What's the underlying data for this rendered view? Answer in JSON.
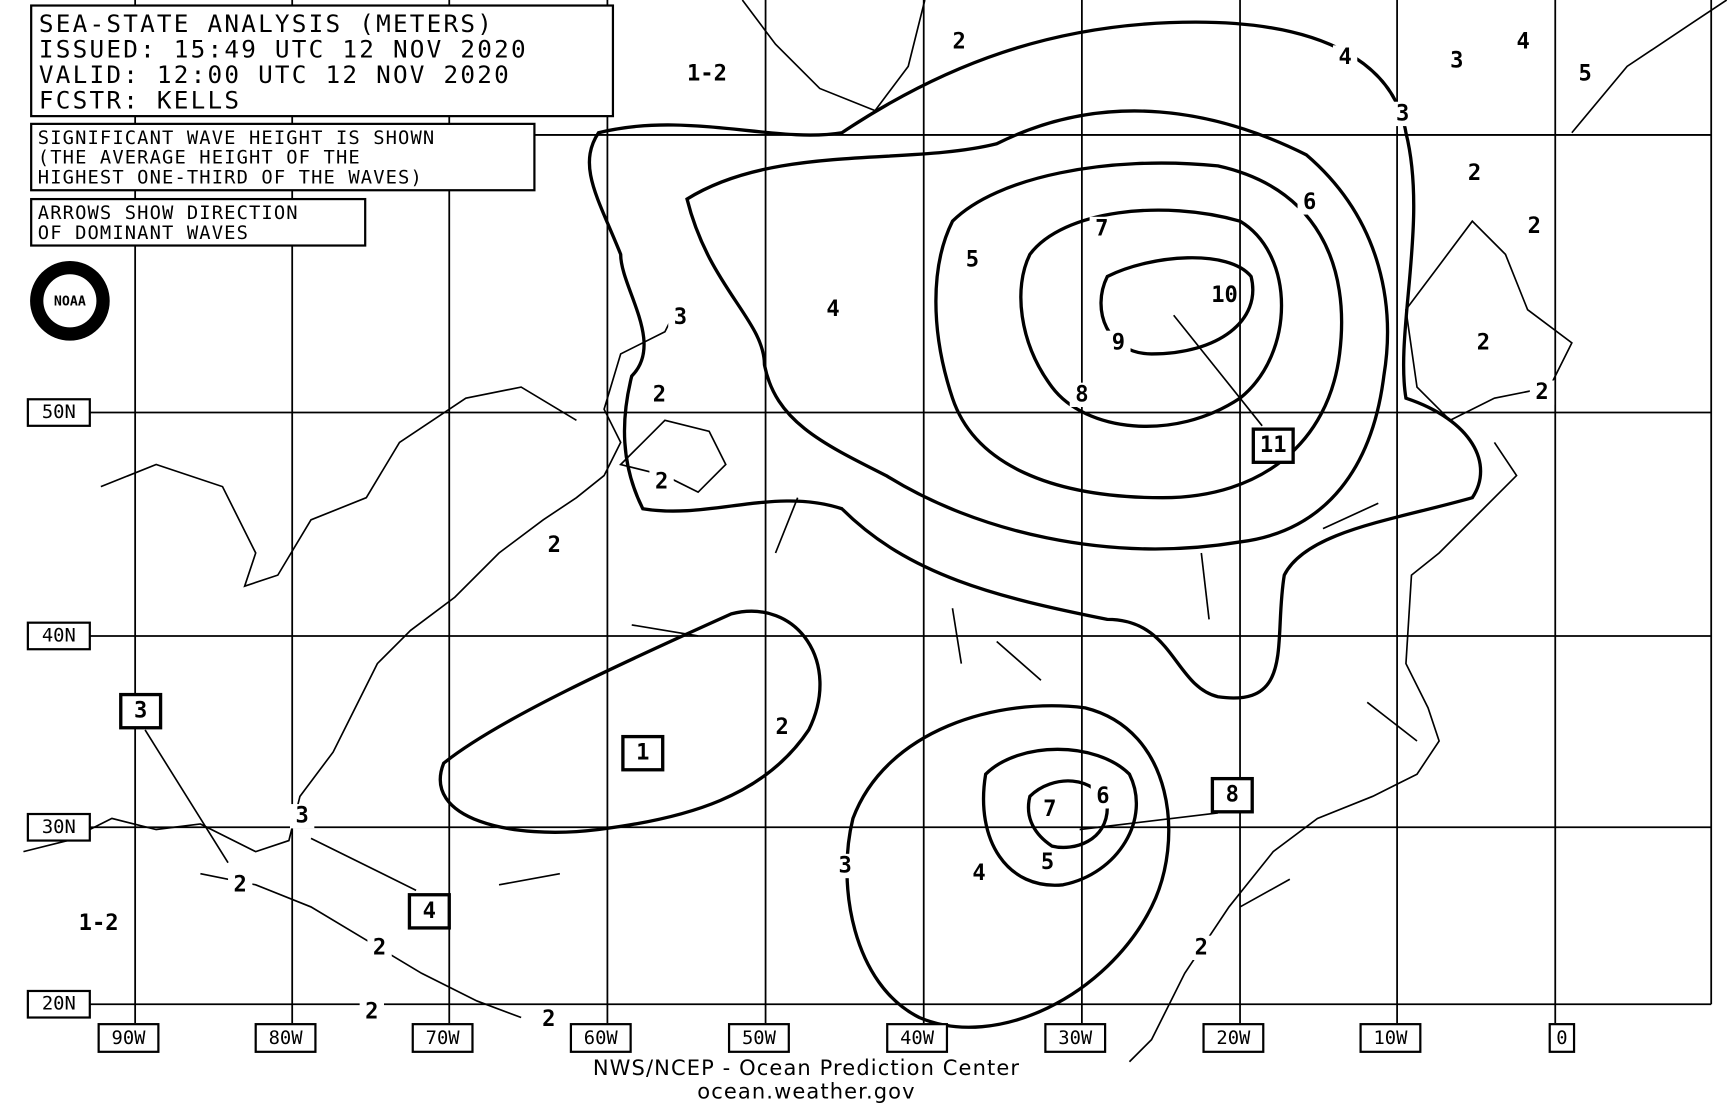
{
  "header": {
    "title": "SEA-STATE ANALYSIS (METERS)",
    "issued": "ISSUED: 15:49 UTC 12 NOV 2020",
    "valid": "VALID:   12:00 UTC 12 NOV 2020",
    "forecaster": "FCSTR:   KELLS"
  },
  "notes": {
    "wave_height": [
      "SIGNIFICANT WAVE HEIGHT IS SHOWN",
      "(THE AVERAGE HEIGHT OF THE",
      "HIGHEST ONE-THIRD OF THE WAVES)"
    ],
    "arrows": [
      "ARROWS SHOW DIRECTION",
      "OF DOMINANT WAVES"
    ]
  },
  "logo": "NOAA",
  "latitudes": [
    "50N",
    "40N",
    "30N",
    "20N"
  ],
  "longitudes": [
    "90W",
    "80W",
    "70W",
    "60W",
    "50W",
    "40W",
    "30W",
    "20W",
    "10W",
    "0"
  ],
  "contour_labels": [
    "1-2",
    "2",
    "4",
    "3",
    "4",
    "5",
    "3",
    "6",
    "7",
    "5",
    "10",
    "9",
    "4",
    "3",
    "8",
    "2",
    "2",
    "2",
    "2",
    "2",
    "2",
    "2",
    "2",
    "3",
    "6",
    "7",
    "5",
    "4",
    "3",
    "2",
    "1-2",
    "2",
    "2",
    "2",
    "2"
  ],
  "max_heights": [
    "11",
    "8",
    "4",
    "3",
    "1"
  ],
  "footer": {
    "agency": "NWS/NCEP - Ocean Prediction Center",
    "url": "ocean.weather.gov"
  }
}
